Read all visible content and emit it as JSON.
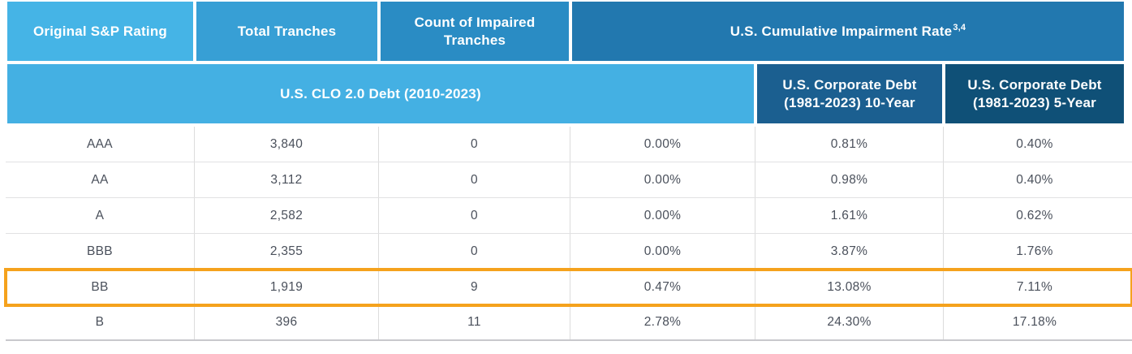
{
  "table": {
    "title_semantic": "US CLO impairment rate comparison table",
    "header_row1": [
      {
        "label": "Original S&P Rating"
      },
      {
        "label": "Total Tranches"
      },
      {
        "label": "Count of Impaired Tranches"
      },
      {
        "label": "U.S. Cumulative Impairment Rate",
        "superscript": "3,4"
      }
    ],
    "header_row2": [
      {
        "label": "U.S. CLO 2.0 Debt (2010-2023)"
      },
      {
        "label": "U.S. Corporate Debt (1981-2023) 10-Year"
      },
      {
        "label": "U.S. Corporate Debt (1981-2023) 5-Year"
      }
    ],
    "rows": [
      {
        "cells": [
          "AAA",
          "3,840",
          "0",
          "0.00%",
          "0.81%",
          "0.40%"
        ],
        "highlighted": false
      },
      {
        "cells": [
          "AA",
          "3,112",
          "0",
          "0.00%",
          "0.98%",
          "0.40%"
        ],
        "highlighted": false
      },
      {
        "cells": [
          "A",
          "2,582",
          "0",
          "0.00%",
          "1.61%",
          "0.62%"
        ],
        "highlighted": false
      },
      {
        "cells": [
          "BBB",
          "2,355",
          "0",
          "0.00%",
          "3.87%",
          "1.76%"
        ],
        "highlighted": false
      },
      {
        "cells": [
          "BB",
          "1,919",
          "9",
          "0.47%",
          "13.08%",
          "7.11%"
        ],
        "highlighted": true
      },
      {
        "cells": [
          "B",
          "396",
          "11",
          "2.78%",
          "24.30%",
          "17.18%"
        ],
        "highlighted": false
      }
    ]
  },
  "colors": {
    "header1": "#45B4E6",
    "header2": "#379FD5",
    "header3": "#2A8CC4",
    "header4": "#2278AF",
    "band": "#44B0E3",
    "corp10": "#1B5F90",
    "corp5": "#0F5077",
    "highlight": "#F5A21D",
    "grid": "#DCDCDC",
    "text": "#4A505B"
  }
}
